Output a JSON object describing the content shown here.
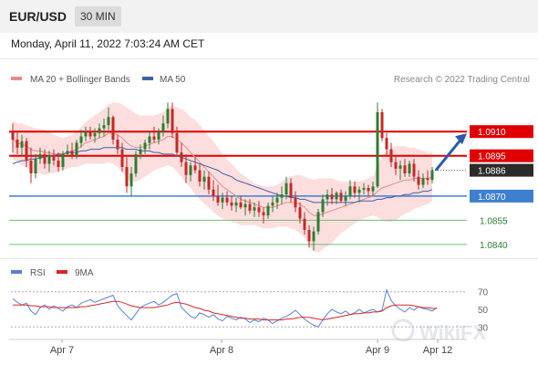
{
  "header": {
    "pair": "EUR/USD",
    "timeframe": "30 MIN"
  },
  "datetime": "Monday, April 11, 2022 7:03:24 AM CET",
  "legend": {
    "ma20": "MA 20 + Bollinger Bands",
    "ma50": "MA 50",
    "rsi": "RSI",
    "ma9": "9MA"
  },
  "copyright": "Research © 2022 Trading Central",
  "watermark": "WikiFX",
  "colors": {
    "up": "#2e7d32",
    "down": "#c62828",
    "band": "#fbd3d3",
    "ma20": "#e58c8c",
    "ma50": "#3f5fa8",
    "resistance": "#e00000",
    "support": "#3f7fd0",
    "target": "#2e7d32",
    "current": "#2b2b2b",
    "arrow": "#2b5aa8",
    "rsi": "#5b7fd6",
    "rsi_ma": "#d62828"
  },
  "chart_data": [
    {
      "type": "candlestick",
      "title": "EUR/USD 30 MIN",
      "x_ticks": [
        "Apr 7",
        "Apr 8",
        "Apr 9",
        "Apr 12"
      ],
      "ylim": [
        1.0832,
        1.0935
      ],
      "grid": false,
      "legend_position": "top-left",
      "current_price": "1.0886",
      "levels": [
        {
          "label": "1.0910",
          "value": 1.091,
          "kind": "resistance"
        },
        {
          "label": "1.0895",
          "value": 1.0895,
          "kind": "resistance"
        },
        {
          "label": "1.0870",
          "value": 1.087,
          "kind": "support"
        },
        {
          "label": "1.0855",
          "value": 1.0855,
          "kind": "target"
        },
        {
          "label": "1.0840",
          "value": 1.084,
          "kind": "target"
        }
      ],
      "ohlc": [
        [
          1.091,
          1.0915,
          1.0897,
          1.0905
        ],
        [
          1.0905,
          1.091,
          1.0896,
          1.09
        ],
        [
          1.09,
          1.0908,
          1.0895,
          1.0904
        ],
        [
          1.0904,
          1.0906,
          1.0888,
          1.0892
        ],
        [
          1.0892,
          1.09,
          1.0878,
          1.0884
        ],
        [
          1.0884,
          1.0896,
          1.0881,
          1.0893
        ],
        [
          1.0893,
          1.09,
          1.089,
          1.0896
        ],
        [
          1.0896,
          1.0899,
          1.0887,
          1.089
        ],
        [
          1.089,
          1.0898,
          1.0885,
          1.0895
        ],
        [
          1.0895,
          1.0899,
          1.0889,
          1.0892
        ],
        [
          1.0892,
          1.0897,
          1.0885,
          1.0888
        ],
        [
          1.0888,
          1.0898,
          1.0886,
          1.0896
        ],
        [
          1.0896,
          1.0902,
          1.0894,
          1.0898
        ],
        [
          1.0898,
          1.0903,
          1.0893,
          1.0895
        ],
        [
          1.0895,
          1.0905,
          1.0893,
          1.0903
        ],
        [
          1.0903,
          1.0911,
          1.09,
          1.0907
        ],
        [
          1.0907,
          1.0913,
          1.0904,
          1.091
        ],
        [
          1.091,
          1.0913,
          1.0905,
          1.0907
        ],
        [
          1.0907,
          1.0912,
          1.0903,
          1.0909
        ],
        [
          1.0909,
          1.0915,
          1.0906,
          1.0912
        ],
        [
          1.0912,
          1.0918,
          1.0907,
          1.0914
        ],
        [
          1.0914,
          1.0925,
          1.0911,
          1.0919
        ],
        [
          1.0919,
          1.092,
          1.0902,
          1.0905
        ],
        [
          1.0905,
          1.0908,
          1.0896,
          1.0899
        ],
        [
          1.0899,
          1.0903,
          1.0885,
          1.0888
        ],
        [
          1.0888,
          1.0894,
          1.0872,
          1.0876
        ],
        [
          1.0876,
          1.0888,
          1.087,
          1.0884
        ],
        [
          1.0884,
          1.0898,
          1.0882,
          1.0896
        ],
        [
          1.0896,
          1.0902,
          1.0893,
          1.0899
        ],
        [
          1.0899,
          1.0905,
          1.0896,
          1.0903
        ],
        [
          1.0903,
          1.091,
          1.0899,
          1.0907
        ],
        [
          1.0907,
          1.0913,
          1.0903,
          1.0905
        ],
        [
          1.0905,
          1.0912,
          1.0902,
          1.091
        ],
        [
          1.091,
          1.092,
          1.0907,
          1.0915
        ],
        [
          1.0915,
          1.0928,
          1.0912,
          1.0924
        ],
        [
          1.0924,
          1.0928,
          1.0906,
          1.0909
        ],
        [
          1.0909,
          1.0913,
          1.0895,
          1.0897
        ],
        [
          1.0897,
          1.0903,
          1.0888,
          1.0891
        ],
        [
          1.0891,
          1.0896,
          1.0878,
          1.0883
        ],
        [
          1.0883,
          1.0891,
          1.0879,
          1.0889
        ],
        [
          1.0889,
          1.0894,
          1.0884,
          1.0886
        ],
        [
          1.0886,
          1.089,
          1.0876,
          1.0879
        ],
        [
          1.0879,
          1.0886,
          1.0874,
          1.0882
        ],
        [
          1.0882,
          1.0885,
          1.0871,
          1.0874
        ],
        [
          1.0874,
          1.088,
          1.0867,
          1.087
        ],
        [
          1.087,
          1.0877,
          1.0864,
          1.0866
        ],
        [
          1.0866,
          1.0872,
          1.0862,
          1.0869
        ],
        [
          1.0869,
          1.0873,
          1.0864,
          1.0866
        ],
        [
          1.0866,
          1.087,
          1.0861,
          1.0864
        ],
        [
          1.0864,
          1.0869,
          1.086,
          1.0866
        ],
        [
          1.0866,
          1.087,
          1.0862,
          1.0863
        ],
        [
          1.0863,
          1.0868,
          1.0858,
          1.0865
        ],
        [
          1.0865,
          1.0868,
          1.0859,
          1.0861
        ],
        [
          1.0861,
          1.0866,
          1.0857,
          1.0863
        ],
        [
          1.0863,
          1.0867,
          1.0857,
          1.086
        ],
        [
          1.086,
          1.0863,
          1.0853,
          1.0858
        ],
        [
          1.0858,
          1.0866,
          1.0856,
          1.0864
        ],
        [
          1.0864,
          1.087,
          1.086,
          1.0866
        ],
        [
          1.0866,
          1.0872,
          1.0862,
          1.0869
        ],
        [
          1.0869,
          1.0876,
          1.0865,
          1.0871
        ],
        [
          1.0871,
          1.0882,
          1.0868,
          1.0878
        ],
        [
          1.0878,
          1.0881,
          1.0866,
          1.0869
        ],
        [
          1.0869,
          1.0873,
          1.086,
          1.0863
        ],
        [
          1.0863,
          1.0866,
          1.0853,
          1.0856
        ],
        [
          1.0856,
          1.086,
          1.0846,
          1.0849
        ],
        [
          1.0849,
          1.0852,
          1.0838,
          1.0842
        ],
        [
          1.0842,
          1.0851,
          1.0836,
          1.0848
        ],
        [
          1.0848,
          1.0862,
          1.0846,
          1.086
        ],
        [
          1.086,
          1.0871,
          1.0857,
          1.0868
        ],
        [
          1.0868,
          1.0874,
          1.0864,
          1.0871
        ],
        [
          1.0871,
          1.0875,
          1.0865,
          1.0868
        ],
        [
          1.0868,
          1.0873,
          1.0865,
          1.0872
        ],
        [
          1.0872,
          1.0874,
          1.0866,
          1.0867
        ],
        [
          1.0867,
          1.0873,
          1.0864,
          1.087
        ],
        [
          1.087,
          1.088,
          1.0868,
          1.0876
        ],
        [
          1.0876,
          1.0879,
          1.0869,
          1.0872
        ],
        [
          1.0872,
          1.0876,
          1.0866,
          1.0874
        ],
        [
          1.0874,
          1.0878,
          1.0871,
          1.0875
        ],
        [
          1.0875,
          1.0877,
          1.087,
          1.0873
        ],
        [
          1.0873,
          1.0879,
          1.087,
          1.0876
        ],
        [
          1.0876,
          1.0928,
          1.0875,
          1.0922
        ],
        [
          1.0922,
          1.0924,
          1.0904,
          1.0906
        ],
        [
          1.0906,
          1.0909,
          1.0895,
          1.0899
        ],
        [
          1.0899,
          1.0903,
          1.0888,
          1.0891
        ],
        [
          1.0891,
          1.0895,
          1.0883,
          1.0887
        ],
        [
          1.0887,
          1.0892,
          1.088,
          1.0889
        ],
        [
          1.0889,
          1.0893,
          1.0882,
          1.0884
        ],
        [
          1.0884,
          1.0892,
          1.0882,
          1.089
        ],
        [
          1.089,
          1.0893,
          1.0879,
          1.0882
        ],
        [
          1.0882,
          1.0886,
          1.0874,
          1.0877
        ],
        [
          1.0877,
          1.0884,
          1.0875,
          1.0881
        ],
        [
          1.0881,
          1.0886,
          1.0877,
          1.088
        ],
        [
          1.088,
          1.0888,
          1.0878,
          1.0886
        ]
      ],
      "ma20": [
        1.0905,
        1.0903,
        1.0902,
        1.0901,
        1.0899,
        1.0898,
        1.0898,
        1.0897,
        1.0897,
        1.0896,
        1.0896,
        1.0896,
        1.0897,
        1.0898,
        1.0899,
        1.0901,
        1.0903,
        1.0904,
        1.0905,
        1.0906,
        1.0907,
        1.0909,
        1.0909,
        1.0908,
        1.0906,
        1.0903,
        1.0901,
        1.09,
        1.09,
        1.0901,
        1.0902,
        1.0903,
        1.0904,
        1.0905,
        1.0907,
        1.0907,
        1.0905,
        1.0903,
        1.09,
        1.0897,
        1.0894,
        1.0891,
        1.0888,
        1.0885,
        1.0882,
        1.0879,
        1.0876,
        1.0874,
        1.0872,
        1.087,
        1.0868,
        1.0867,
        1.0866,
        1.0865,
        1.0864,
        1.0863,
        1.0863,
        1.0863,
        1.0864,
        1.0865,
        1.0866,
        1.0866,
        1.0866,
        1.0865,
        1.0863,
        1.086,
        1.0858,
        1.0858,
        1.0859,
        1.086,
        1.0861,
        1.0862,
        1.0863,
        1.0864,
        1.0865,
        1.0866,
        1.0867,
        1.0868,
        1.0869,
        1.087,
        1.0873,
        1.0875,
        1.0876,
        1.0877,
        1.0878,
        1.0879,
        1.088,
        1.088,
        1.0881,
        1.0881,
        1.0881,
        1.0881,
        1.0882
      ],
      "ma50": [
        1.089,
        1.0891,
        1.0892,
        1.0892,
        1.0893,
        1.0893,
        1.0894,
        1.0894,
        1.0895,
        1.0895,
        1.0896,
        1.0896,
        1.0897,
        1.0897,
        1.0897,
        1.0898,
        1.0898,
        1.0899,
        1.0899,
        1.0899,
        1.09,
        1.09,
        1.09,
        1.09,
        1.09,
        1.0899,
        1.0899,
        1.0899,
        1.0898,
        1.0898,
        1.0898,
        1.0897,
        1.0897,
        1.0896,
        1.0896,
        1.0896,
        1.0895,
        1.0894,
        1.0893,
        1.0892,
        1.0891,
        1.089,
        1.0889,
        1.0888,
        1.0887,
        1.0886,
        1.0884,
        1.0883,
        1.0882,
        1.088,
        1.0879,
        1.0878,
        1.0877,
        1.0876,
        1.0875,
        1.0874,
        1.0873,
        1.0872,
        1.0871,
        1.087,
        1.087,
        1.0869,
        1.0869,
        1.0868,
        1.0868,
        1.0867,
        1.0866,
        1.0866,
        1.0866,
        1.0866,
        1.0866,
        1.0866,
        1.0866,
        1.0866,
        1.0866,
        1.0866,
        1.0867,
        1.0867,
        1.0867,
        1.0867,
        1.0868,
        1.0868,
        1.0869,
        1.0869,
        1.087,
        1.087,
        1.0871,
        1.0871,
        1.0872,
        1.0872,
        1.0873,
        1.0873,
        1.0874
      ],
      "band_width": [
        0.0012,
        0.0012,
        0.0013,
        0.0013,
        0.0014,
        0.0014,
        0.0014,
        0.0014,
        0.0013,
        0.0012,
        0.0011,
        0.001,
        0.001,
        0.001,
        0.0011,
        0.0012,
        0.0013,
        0.0014,
        0.0015,
        0.0016,
        0.0017,
        0.0018,
        0.0019,
        0.002,
        0.0021,
        0.0022,
        0.0022,
        0.0021,
        0.002,
        0.0019,
        0.0018,
        0.0017,
        0.0017,
        0.0017,
        0.0018,
        0.0019,
        0.002,
        0.0021,
        0.0022,
        0.0022,
        0.0023,
        0.0023,
        0.0023,
        0.0022,
        0.0022,
        0.0021,
        0.002,
        0.0019,
        0.0018,
        0.0017,
        0.0016,
        0.0015,
        0.0014,
        0.0013,
        0.0013,
        0.0013,
        0.0013,
        0.0013,
        0.0013,
        0.0014,
        0.0015,
        0.0016,
        0.0017,
        0.0018,
        0.0019,
        0.0021,
        0.0022,
        0.0023,
        0.0022,
        0.0021,
        0.002,
        0.0018,
        0.0016,
        0.0015,
        0.0014,
        0.0013,
        0.0012,
        0.0012,
        0.0012,
        0.0012,
        0.0016,
        0.002,
        0.0022,
        0.0023,
        0.0023,
        0.0022,
        0.0021,
        0.002,
        0.0019,
        0.0018,
        0.0017,
        0.0016,
        0.0015
      ]
    },
    {
      "type": "line",
      "title": "RSI",
      "y_ticks": [
        "70",
        "50",
        "30"
      ],
      "ylim": [
        20,
        80
      ],
      "reference_lines": [
        70,
        30
      ],
      "series": [
        {
          "name": "RSI",
          "values": [
            62,
            58,
            55,
            57,
            48,
            44,
            52,
            55,
            50,
            54,
            51,
            48,
            53,
            55,
            52,
            57,
            59,
            61,
            58,
            60,
            62,
            64,
            66,
            54,
            48,
            43,
            38,
            45,
            52,
            55,
            57,
            59,
            55,
            58,
            62,
            66,
            68,
            52,
            47,
            42,
            40,
            46,
            44,
            41,
            44,
            39,
            37,
            42,
            40,
            38,
            41,
            39,
            35,
            38,
            36,
            40,
            38,
            34,
            37,
            40,
            42,
            45,
            49,
            44,
            39,
            35,
            32,
            30,
            38,
            45,
            50,
            47,
            45,
            48,
            44,
            46,
            50,
            46,
            48,
            50,
            47,
            49,
            72,
            60,
            54,
            50,
            47,
            52,
            49,
            53,
            51,
            50,
            48,
            52
          ]
        },
        {
          "name": "9MA",
          "values": [
            55,
            55,
            55,
            55,
            54,
            54,
            53,
            53,
            53,
            52,
            52,
            52,
            52,
            52,
            52,
            53,
            53,
            54,
            55,
            56,
            57,
            58,
            59,
            59,
            58,
            56,
            54,
            53,
            52,
            52,
            52,
            52,
            53,
            54,
            55,
            57,
            58,
            57,
            56,
            54,
            52,
            51,
            49,
            48,
            46,
            45,
            44,
            43,
            42,
            41,
            40,
            40,
            39,
            39,
            39,
            38,
            38,
            38,
            38,
            38,
            39,
            39,
            40,
            41,
            41,
            41,
            40,
            39,
            38,
            39,
            40,
            41,
            42,
            43,
            44,
            45,
            45,
            46,
            46,
            47,
            47,
            48,
            52,
            54,
            55,
            55,
            55,
            55,
            54,
            53,
            52,
            52,
            51,
            51
          ]
        }
      ]
    }
  ]
}
